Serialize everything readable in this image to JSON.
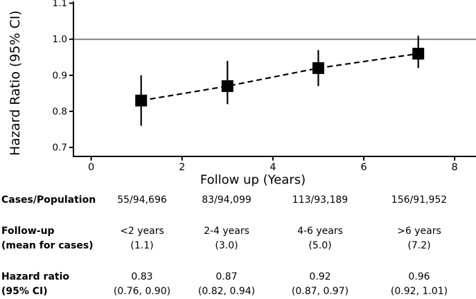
{
  "chart_data": {
    "type": "scatter",
    "title": "",
    "xlabel": "Follow up (Years)",
    "ylabel": "Hazard Ratio (95% CI)",
    "x": [
      1.1,
      3.0,
      5.0,
      7.2
    ],
    "y": [
      0.83,
      0.87,
      0.92,
      0.96
    ],
    "ci_low": [
      0.76,
      0.82,
      0.87,
      0.92
    ],
    "ci_high": [
      0.9,
      0.94,
      0.97,
      1.01
    ],
    "x_ticks": [
      0,
      2,
      4,
      6,
      8
    ],
    "y_ticks": [
      0.7,
      0.8,
      0.9,
      1.0,
      1.1
    ],
    "xlim": [
      -0.39,
      8.44
    ],
    "ylim": [
      0.675,
      1.105
    ],
    "reference_line_y": 1.0,
    "line_style": "dashed",
    "marker": "filled-square",
    "legend": "none",
    "grid": "off",
    "colors": {
      "marker": "#000000",
      "trend_line": "#000000",
      "error_bar": "#000000",
      "reference_line": "#808080",
      "axis": "#000000",
      "text": "#000000"
    }
  },
  "table": {
    "rows": [
      {
        "label": [
          "Cases/Population"
        ],
        "cols": [
          [
            "55/94,696"
          ],
          [
            "83/94,099"
          ],
          [
            "113/93,189"
          ],
          [
            "156/91,952"
          ]
        ]
      },
      {
        "label": [
          "Follow-up",
          "(mean for cases)"
        ],
        "cols": [
          [
            "<2 years",
            "(1.1)"
          ],
          [
            "2-4 years",
            "(3.0)"
          ],
          [
            "4-6 years",
            "(5.0)"
          ],
          [
            ">6 years",
            "(7.2)"
          ]
        ]
      },
      {
        "label": [
          "Hazard ratio",
          "(95% CI)"
        ],
        "cols": [
          [
            "0.83",
            "(0.76, 0.90)"
          ],
          [
            "0.87",
            "(0.82, 0.94)"
          ],
          [
            "0.92",
            "(0.87, 0.97)"
          ],
          [
            "0.96",
            "(0.92, 1.01)"
          ]
        ]
      }
    ]
  }
}
